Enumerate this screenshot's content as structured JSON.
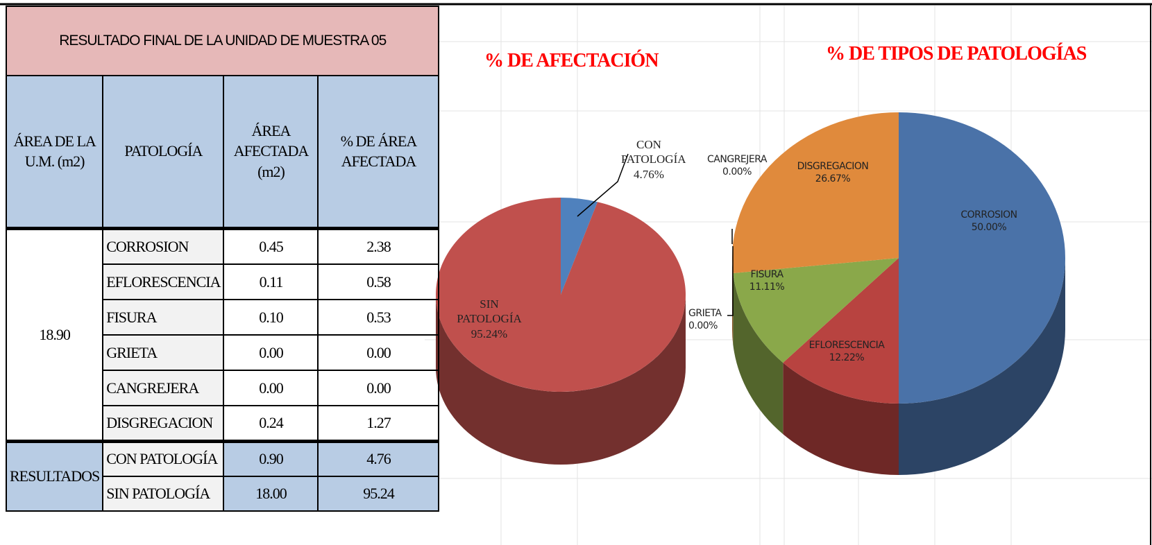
{
  "table": {
    "title": "RESULTADO FINAL DE LA UNIDAD DE MUESTRA 05",
    "headers": [
      "ÁREA DE LA U.M. (m2)",
      "PATOLOGÍA",
      "ÁREA AFECTADA (m2)",
      "% DE ÁREA AFECTADA"
    ],
    "area": "18.90",
    "rows": [
      [
        "CORROSION",
        "0.45",
        "2.38"
      ],
      [
        "EFLORESCENCIA",
        "0.11",
        "0.58"
      ],
      [
        "FISURA",
        "0.10",
        "0.53"
      ],
      [
        "GRIETA",
        "0.00",
        "0.00"
      ],
      [
        "CANGREJERA",
        "0.00",
        "0.00"
      ],
      [
        "DISGREGACION",
        "0.24",
        "1.27"
      ]
    ],
    "results_label": "RESULTADOS",
    "results": [
      [
        "CON PATOLOGÍA",
        "0.90",
        "4.76"
      ],
      [
        "SIN PATOLOGÍA",
        "18.00",
        "95.24"
      ]
    ]
  },
  "chart_data": [
    {
      "type": "pie",
      "title": "% DE  AFECTACIÓN",
      "categories": [
        "CON PATOLOGÍA",
        "SIN PATOLOGÍA"
      ],
      "values": [
        4.76,
        95.24
      ],
      "value_labels": [
        "4.76%",
        "95.24%"
      ],
      "colors": [
        "#4f81bd",
        "#c0504d"
      ]
    },
    {
      "type": "pie",
      "title": "% DE TIPOS DE PATOLOGÍAS",
      "categories": [
        "CORROSION",
        "EFLORESCENCIA",
        "FISURA",
        "GRIETA",
        "CANGREJERA",
        "DISGREGACION"
      ],
      "values": [
        50.0,
        12.22,
        11.11,
        0.0,
        0.0,
        26.67
      ],
      "value_labels": [
        "50.00%",
        "12.22%",
        "11.11%",
        "0.00%",
        "0.00%",
        "26.67%"
      ],
      "colors": [
        "#4a72a8",
        "#b84340",
        "#8aa84a",
        "#8064a2",
        "#4bacc6",
        "#e08a3c"
      ]
    }
  ]
}
